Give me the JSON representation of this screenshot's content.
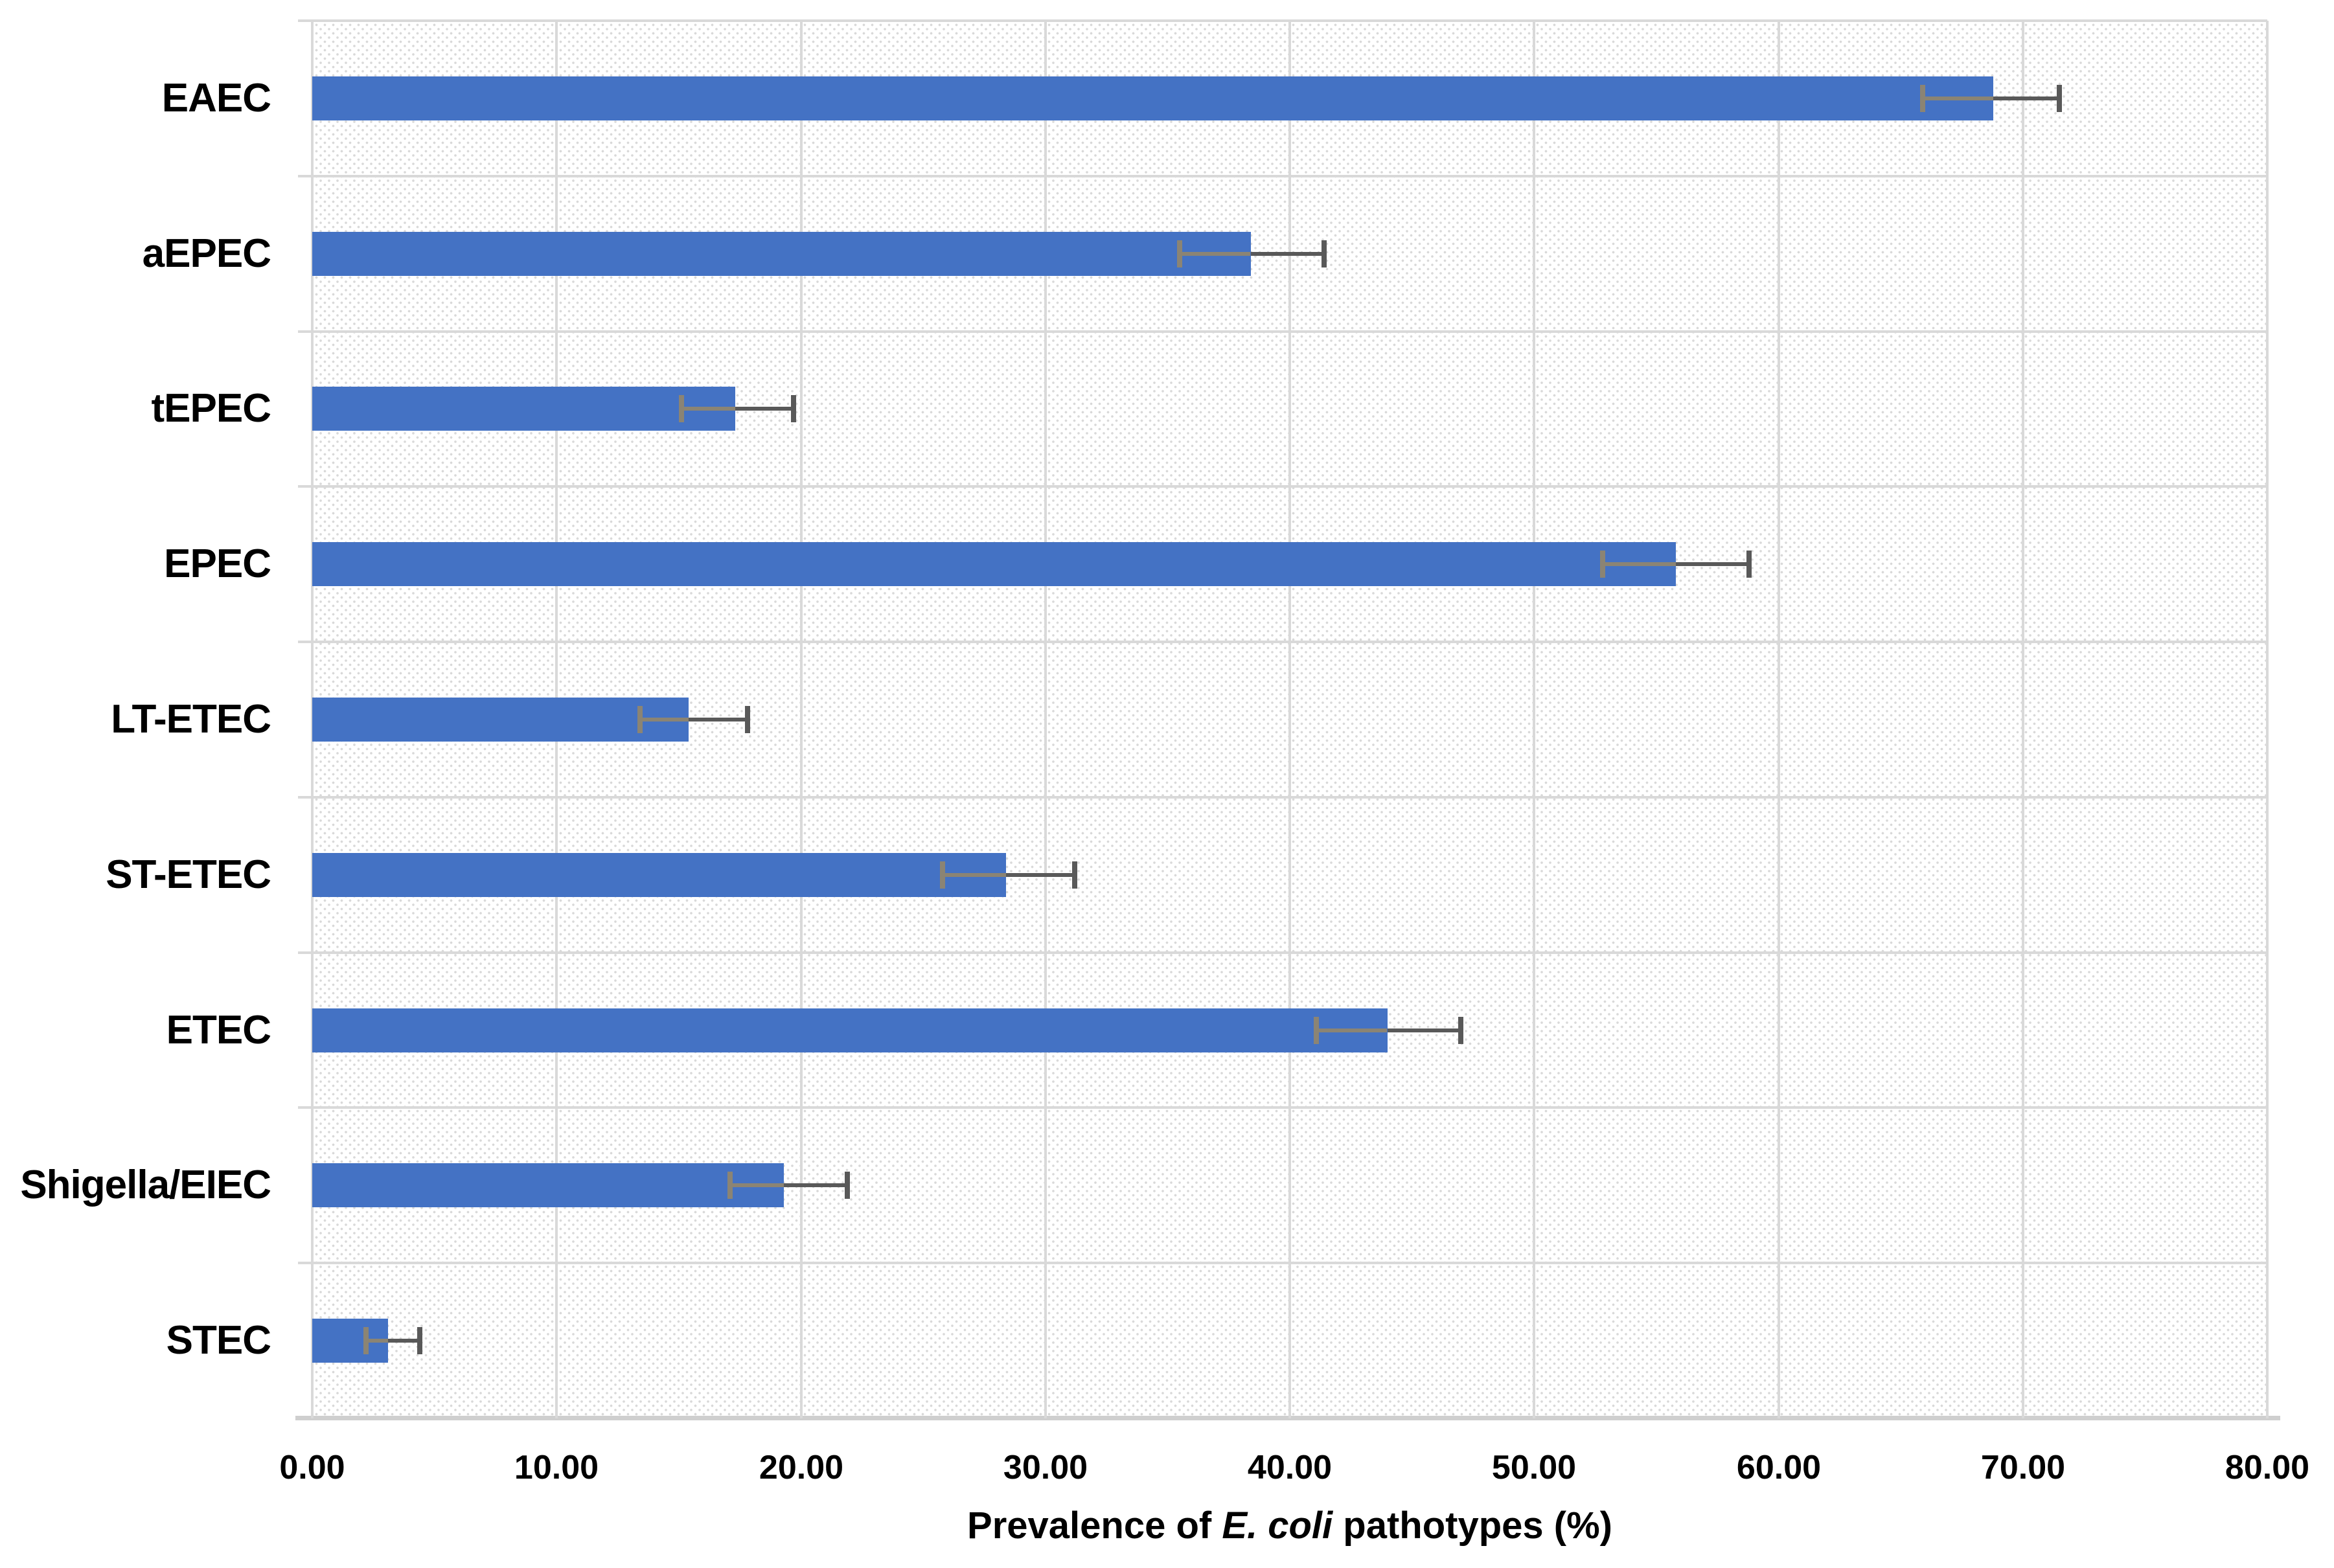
{
  "chart_data": {
    "type": "bar",
    "orientation": "horizontal",
    "title": "",
    "xlabel_prefix": "Prevalence of ",
    "xlabel_italic": "E. coli",
    "xlabel_suffix": " pathotypes (%)",
    "categories": [
      "EAEC",
      "aEPEC",
      "tEPEC",
      "EPEC",
      "LT-ETEC",
      "ST-ETEC",
      "ETEC",
      "Shigella/EIEC",
      "STEC"
    ],
    "values": [
      68.8,
      38.4,
      17.3,
      55.8,
      15.4,
      28.4,
      44.0,
      19.3,
      3.1
    ],
    "error_low": [
      65.9,
      35.5,
      15.1,
      52.8,
      13.4,
      25.8,
      41.1,
      17.1,
      2.2
    ],
    "error_high": [
      71.5,
      41.4,
      19.7,
      58.8,
      17.8,
      31.2,
      47.0,
      21.9,
      4.4
    ],
    "xlim": [
      0,
      80
    ],
    "x_tick_step": 10,
    "x_tick_labels": [
      "0.00",
      "10.00",
      "20.00",
      "30.00",
      "40.00",
      "50.00",
      "60.00",
      "70.00",
      "80.00"
    ],
    "grid": true,
    "legend": false,
    "colors": {
      "bar": "#4472C4",
      "grid": "#d9d9d9",
      "error_plus": "#595959",
      "error_minus": "#8b8474",
      "hatch_dot": "#d9d9d9",
      "axis_line": "#cfcfcf",
      "text": "#000000"
    }
  }
}
